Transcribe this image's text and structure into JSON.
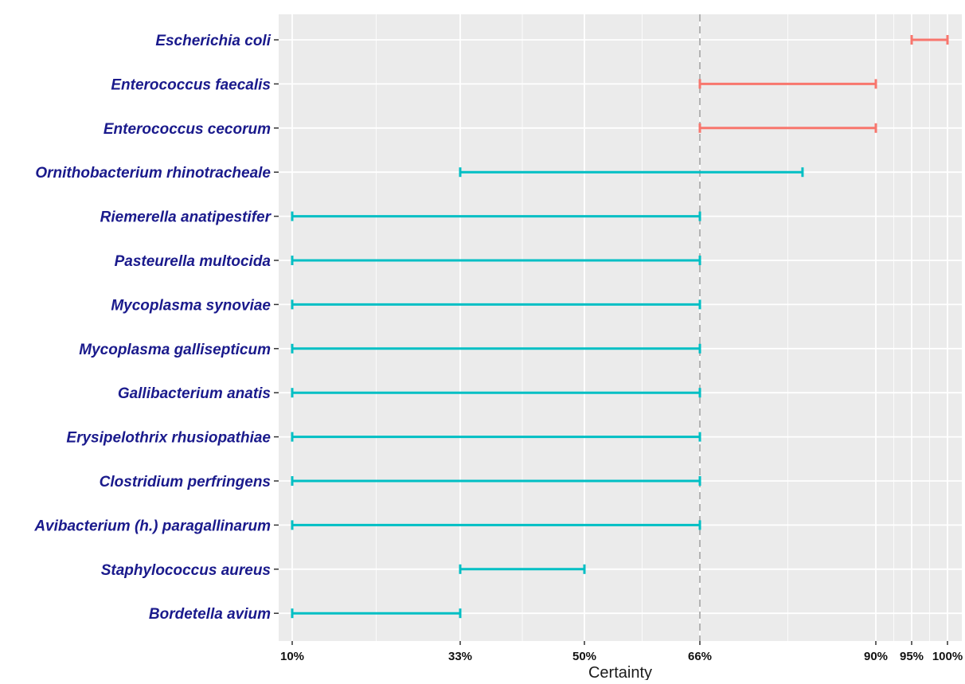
{
  "chart_data": {
    "type": "range",
    "xlabel": "Certainty",
    "x_scale": "custom",
    "x_ticks": [
      {
        "value": 10,
        "label": "10%"
      },
      {
        "value": 33,
        "label": "33%"
      },
      {
        "value": 50,
        "label": "50%"
      },
      {
        "value": 66,
        "label": "66%"
      },
      {
        "value": 90,
        "label": "90%"
      },
      {
        "value": 95,
        "label": "95%"
      },
      {
        "value": 100,
        "label": "100%"
      }
    ],
    "reference_line": {
      "value": 66,
      "style": "dashed",
      "color": "#b3b3b3"
    },
    "grid": true,
    "colors": {
      "panel_background": "#ebebeb",
      "grid": "#ffffff",
      "high_certainty": "#f8766d",
      "low_certainty": "#00bfc4",
      "category_label": "#1a1a8c"
    },
    "categories": [
      "Escherichia coli",
      "Enterococcus faecalis",
      "Enterococcus cecorum",
      "Ornithobacterium rhinotracheale",
      "Riemerella anatipestifer",
      "Pasteurella multocida",
      "Mycoplasma synoviae",
      "Mycoplasma gallisepticum",
      "Gallibacterium anatis",
      "Erysipelothrix rhusiopathiae",
      "Clostridium perfringens",
      "Avibacterium (h.) paragallinarum",
      "Staphylococcus aureus",
      "Bordetella avium"
    ],
    "ranges": [
      {
        "low": 95,
        "high": 100,
        "group": "high"
      },
      {
        "low": 66,
        "high": 90,
        "group": "high"
      },
      {
        "low": 66,
        "high": 90,
        "group": "high"
      },
      {
        "low": 33,
        "high": 80,
        "group": "low"
      },
      {
        "low": 10,
        "high": 66,
        "group": "low"
      },
      {
        "low": 10,
        "high": 66,
        "group": "low"
      },
      {
        "low": 10,
        "high": 66,
        "group": "low"
      },
      {
        "low": 10,
        "high": 66,
        "group": "low"
      },
      {
        "low": 10,
        "high": 66,
        "group": "low"
      },
      {
        "low": 10,
        "high": 66,
        "group": "low"
      },
      {
        "low": 10,
        "high": 66,
        "group": "low"
      },
      {
        "low": 10,
        "high": 66,
        "group": "low"
      },
      {
        "low": 33,
        "high": 50,
        "group": "low"
      },
      {
        "low": 10,
        "high": 33,
        "group": "low"
      }
    ]
  }
}
